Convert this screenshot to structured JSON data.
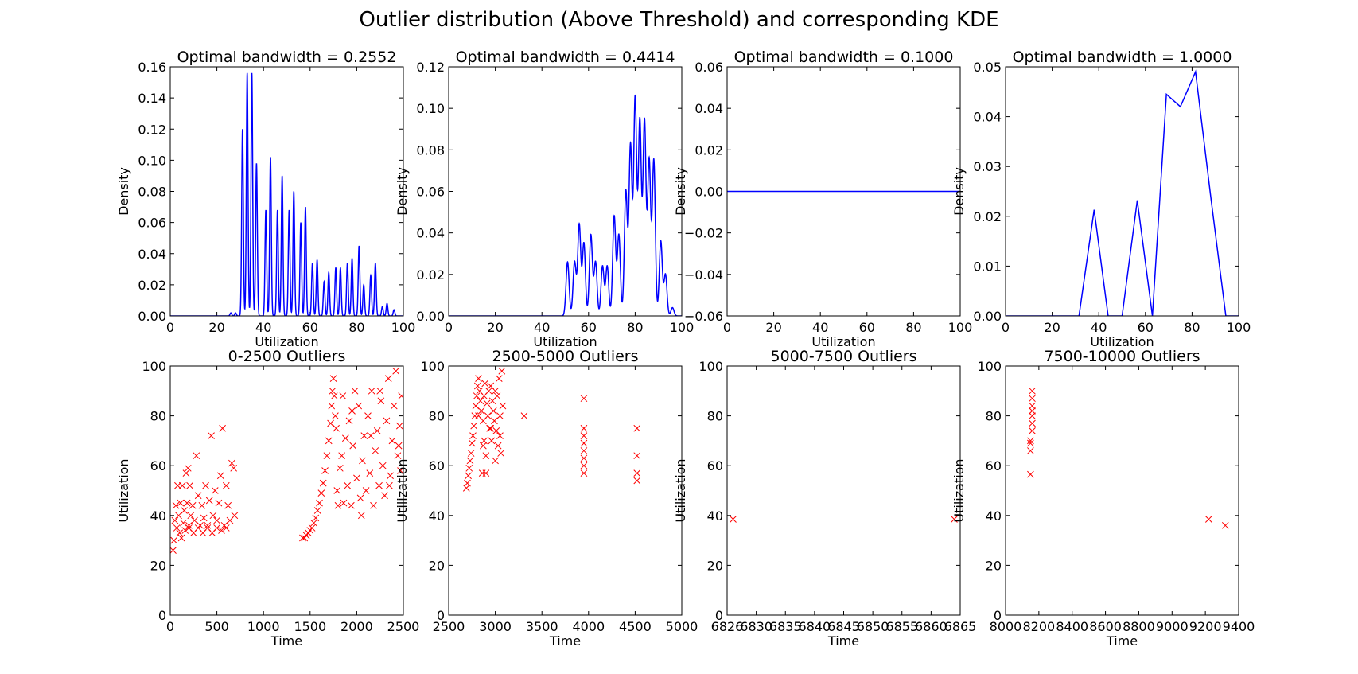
{
  "figure_title": "Outlier distribution (Above Threshold) and corresponding KDE",
  "colors": {
    "kde_line": "#0000ff",
    "scatter_marker": "#ff0000",
    "axes": "#000000"
  },
  "chart_data": [
    {
      "type": "line",
      "title": "Optimal bandwidth = 0.2552",
      "xlabel": "Utilization",
      "ylabel": "Density",
      "xlim": [
        0,
        100
      ],
      "ylim": [
        0,
        0.16
      ],
      "xticks": [
        "0",
        "20",
        "40",
        "60",
        "80",
        "100"
      ],
      "yticks": [
        "0.00",
        "0.02",
        "0.04",
        "0.06",
        "0.08",
        "0.10",
        "0.12",
        "0.14",
        "0.16"
      ],
      "peaks": [
        [
          26,
          0.002
        ],
        [
          28,
          0.002
        ],
        [
          31,
          0.12
        ],
        [
          33,
          0.156
        ],
        [
          35,
          0.156
        ],
        [
          37,
          0.098
        ],
        [
          41,
          0.068
        ],
        [
          43,
          0.102
        ],
        [
          46,
          0.068
        ],
        [
          48,
          0.09
        ],
        [
          51,
          0.068
        ],
        [
          53,
          0.08
        ],
        [
          56,
          0.06
        ],
        [
          58,
          0.07
        ],
        [
          61,
          0.034
        ],
        [
          63,
          0.036
        ],
        [
          66,
          0.022
        ],
        [
          68,
          0.028
        ],
        [
          71,
          0.031
        ],
        [
          73,
          0.031
        ],
        [
          76,
          0.034
        ],
        [
          78,
          0.037
        ],
        [
          81,
          0.045
        ],
        [
          83,
          0.02
        ],
        [
          86,
          0.026
        ],
        [
          88,
          0.034
        ],
        [
          91,
          0.006
        ],
        [
          93,
          0.008
        ],
        [
          96,
          0.004
        ]
      ],
      "peak_width": 0.35
    },
    {
      "type": "line",
      "title": "Optimal bandwidth = 0.4414",
      "xlabel": "Utilization",
      "ylabel": "Density",
      "xlim": [
        0,
        100
      ],
      "ylim": [
        0,
        0.12
      ],
      "xticks": [
        "0",
        "20",
        "40",
        "60",
        "80",
        "100"
      ],
      "yticks": [
        "0.00",
        "0.02",
        "0.04",
        "0.06",
        "0.08",
        "0.10",
        "0.12"
      ],
      "peaks": [
        [
          51,
          0.026
        ],
        [
          54,
          0.026
        ],
        [
          56,
          0.044
        ],
        [
          58,
          0.035
        ],
        [
          61,
          0.039
        ],
        [
          63,
          0.026
        ],
        [
          66,
          0.024
        ],
        [
          68,
          0.024
        ],
        [
          71,
          0.048
        ],
        [
          73,
          0.039
        ],
        [
          76,
          0.06
        ],
        [
          78,
          0.082
        ],
        [
          80,
          0.105
        ],
        [
          82,
          0.094
        ],
        [
          84,
          0.094
        ],
        [
          86,
          0.075
        ],
        [
          88,
          0.075
        ],
        [
          91,
          0.036
        ],
        [
          93,
          0.02
        ],
        [
          96,
          0.004
        ]
      ],
      "peak_width": 0.65
    },
    {
      "type": "line",
      "title": "Optimal bandwidth = 0.1000",
      "xlabel": "Utilization",
      "ylabel": "Density",
      "xlim": [
        0,
        100
      ],
      "ylim": [
        -0.06,
        0.06
      ],
      "xticks": [
        "0",
        "20",
        "40",
        "60",
        "80",
        "100"
      ],
      "yticks": [
        "−0.06",
        "−0.04",
        "−0.02",
        "0.00",
        "0.02",
        "0.04",
        "0.06"
      ],
      "points": [
        [
          0,
          0
        ],
        [
          100,
          0
        ]
      ]
    },
    {
      "type": "line",
      "title": "Optimal bandwidth = 1.0000",
      "xlabel": "Utilization",
      "ylabel": "Density",
      "xlim": [
        0,
        100
      ],
      "ylim": [
        0,
        0.05
      ],
      "xticks": [
        "0",
        "20",
        "40",
        "60",
        "80",
        "100"
      ],
      "yticks": [
        "0.00",
        "0.01",
        "0.02",
        "0.03",
        "0.04",
        "0.05"
      ],
      "points": [
        [
          0,
          0
        ],
        [
          31.5,
          0
        ],
        [
          38,
          0.0213
        ],
        [
          44,
          0
        ],
        [
          50,
          0
        ],
        [
          56.5,
          0.0232
        ],
        [
          63,
          0
        ],
        [
          69,
          0.0445
        ],
        [
          75,
          0.042
        ],
        [
          81.5,
          0.049
        ],
        [
          88,
          0.024
        ],
        [
          94.5,
          0
        ],
        [
          100,
          0
        ]
      ]
    },
    {
      "type": "scatter",
      "title": "0-2500 Outliers",
      "xlabel": "Time",
      "ylabel": "Utilization",
      "xlim": [
        0,
        2500
      ],
      "ylim": [
        0,
        100
      ],
      "xticks": [
        "0",
        "500",
        "1000",
        "1500",
        "2000",
        "2500"
      ],
      "yticks": [
        "0",
        "20",
        "40",
        "60",
        "80",
        "100"
      ],
      "points": [
        [
          30,
          26
        ],
        [
          40,
          30
        ],
        [
          50,
          38
        ],
        [
          60,
          44
        ],
        [
          70,
          35
        ],
        [
          80,
          52
        ],
        [
          90,
          40
        ],
        [
          100,
          33
        ],
        [
          110,
          45
        ],
        [
          120,
          31
        ],
        [
          130,
          52
        ],
        [
          140,
          37
        ],
        [
          150,
          42
        ],
        [
          160,
          34
        ],
        [
          170,
          57
        ],
        [
          180,
          45
        ],
        [
          190,
          59
        ],
        [
          200,
          36
        ],
        [
          210,
          52
        ],
        [
          220,
          40
        ],
        [
          240,
          44
        ],
        [
          260,
          38
        ],
        [
          280,
          64
        ],
        [
          300,
          48
        ],
        [
          320,
          36
        ],
        [
          340,
          44
        ],
        [
          360,
          39
        ],
        [
          380,
          52
        ],
        [
          400,
          36
        ],
        [
          420,
          46
        ],
        [
          440,
          72
        ],
        [
          460,
          40
        ],
        [
          480,
          50
        ],
        [
          500,
          38
        ],
        [
          520,
          45
        ],
        [
          540,
          56
        ],
        [
          560,
          75
        ],
        [
          580,
          36
        ],
        [
          600,
          52
        ],
        [
          620,
          44
        ],
        [
          640,
          38
        ],
        [
          660,
          61
        ],
        [
          680,
          59
        ],
        [
          690,
          40
        ],
        [
          200,
          35
        ],
        [
          300,
          35
        ],
        [
          400,
          35
        ],
        [
          500,
          35
        ],
        [
          600,
          35
        ],
        [
          250,
          33
        ],
        [
          350,
          33
        ],
        [
          450,
          33
        ],
        [
          550,
          34
        ],
        [
          1420,
          31
        ],
        [
          1440,
          31
        ],
        [
          1460,
          32
        ],
        [
          1480,
          33
        ],
        [
          1500,
          34
        ],
        [
          1520,
          35
        ],
        [
          1540,
          37
        ],
        [
          1560,
          39
        ],
        [
          1580,
          42
        ],
        [
          1600,
          45
        ],
        [
          1620,
          49
        ],
        [
          1640,
          53
        ],
        [
          1660,
          58
        ],
        [
          1680,
          64
        ],
        [
          1700,
          70
        ],
        [
          1720,
          77
        ],
        [
          1730,
          84
        ],
        [
          1740,
          90
        ],
        [
          1750,
          95
        ],
        [
          1760,
          88
        ],
        [
          1770,
          80
        ],
        [
          1780,
          75
        ],
        [
          1790,
          50
        ],
        [
          1800,
          44
        ],
        [
          1820,
          59
        ],
        [
          1840,
          64
        ],
        [
          1860,
          45
        ],
        [
          1880,
          71
        ],
        [
          1900,
          52
        ],
        [
          1920,
          78
        ],
        [
          1940,
          44
        ],
        [
          1960,
          68
        ],
        [
          1980,
          90
        ],
        [
          2000,
          55
        ],
        [
          2020,
          84
        ],
        [
          2040,
          47
        ],
        [
          2060,
          62
        ],
        [
          2080,
          72
        ],
        [
          2100,
          50
        ],
        [
          2120,
          80
        ],
        [
          2140,
          57
        ],
        [
          2160,
          90
        ],
        [
          2180,
          44
        ],
        [
          2200,
          66
        ],
        [
          2220,
          74
        ],
        [
          2240,
          52
        ],
        [
          2260,
          86
        ],
        [
          2280,
          60
        ],
        [
          2300,
          48
        ],
        [
          2320,
          78
        ],
        [
          2340,
          95
        ],
        [
          2360,
          56
        ],
        [
          2380,
          70
        ],
        [
          2400,
          84
        ],
        [
          2420,
          98
        ],
        [
          2440,
          64
        ],
        [
          2460,
          76
        ],
        [
          2470,
          58
        ],
        [
          2480,
          88
        ],
        [
          1850,
          88
        ],
        [
          1950,
          82
        ],
        [
          2050,
          40
        ],
        [
          2150,
          72
        ],
        [
          2250,
          90
        ],
        [
          2350,
          52
        ],
        [
          2450,
          68
        ]
      ]
    },
    {
      "type": "scatter",
      "title": "2500-5000 Outliers",
      "xlabel": "Time",
      "ylabel": "Utilization",
      "xlim": [
        2500,
        5000
      ],
      "ylim": [
        0,
        100
      ],
      "xticks": [
        "2500",
        "3000",
        "3500",
        "4000",
        "4500",
        "5000"
      ],
      "yticks": [
        "0",
        "20",
        "40",
        "60",
        "80",
        "100"
      ],
      "points": [
        [
          2690,
          51
        ],
        [
          2700,
          53
        ],
        [
          2710,
          56
        ],
        [
          2720,
          59
        ],
        [
          2730,
          62
        ],
        [
          2740,
          65
        ],
        [
          2750,
          69
        ],
        [
          2760,
          72
        ],
        [
          2770,
          76
        ],
        [
          2780,
          80
        ],
        [
          2790,
          84
        ],
        [
          2800,
          88
        ],
        [
          2810,
          92
        ],
        [
          2820,
          95
        ],
        [
          2830,
          90
        ],
        [
          2840,
          86
        ],
        [
          2850,
          82
        ],
        [
          2860,
          57
        ],
        [
          2870,
          78
        ],
        [
          2880,
          88
        ],
        [
          2890,
          93
        ],
        [
          2900,
          57
        ],
        [
          2910,
          85
        ],
        [
          2920,
          80
        ],
        [
          2930,
          90
        ],
        [
          2940,
          75
        ],
        [
          2950,
          92
        ],
        [
          2960,
          70
        ],
        [
          2970,
          86
        ],
        [
          2980,
          82
        ],
        [
          2990,
          78
        ],
        [
          3000,
          90
        ],
        [
          3010,
          74
        ],
        [
          3020,
          88
        ],
        [
          3030,
          68
        ],
        [
          3040,
          95
        ],
        [
          3050,
          80
        ],
        [
          3060,
          65
        ],
        [
          3070,
          98
        ],
        [
          3080,
          84
        ],
        [
          2880,
          70
        ],
        [
          2900,
          64
        ],
        [
          2950,
          75
        ],
        [
          3000,
          62
        ],
        [
          3050,
          72
        ],
        [
          2820,
          80
        ],
        [
          2870,
          68
        ],
        [
          3310,
          80
        ],
        [
          3950,
          87
        ],
        [
          3950,
          75
        ],
        [
          3950,
          72
        ],
        [
          3950,
          69
        ],
        [
          3950,
          66
        ],
        [
          3950,
          63
        ],
        [
          3950,
          60
        ],
        [
          3950,
          57
        ],
        [
          4520,
          75
        ],
        [
          4520,
          64
        ],
        [
          4520,
          57
        ],
        [
          4520,
          54
        ]
      ]
    },
    {
      "type": "scatter",
      "title": "5000-7500 Outliers",
      "xlabel": "Time",
      "ylabel": "Utilization",
      "xlim": [
        6826,
        6865
      ],
      "ylim": [
        0,
        100
      ],
      "xticks": [
        "6826",
        "6830",
        "6835",
        "6840",
        "6845",
        "6850",
        "6855",
        "6860",
        "6865"
      ],
      "yticks": [
        "0",
        "20",
        "40",
        "60",
        "80",
        "100"
      ],
      "points": [
        [
          6827,
          38.5
        ],
        [
          6864,
          38.5
        ]
      ]
    },
    {
      "type": "scatter",
      "title": "7500-10000 Outliers",
      "xlabel": "Time",
      "ylabel": "Utilization",
      "xlim": [
        8000,
        9400
      ],
      "ylim": [
        0,
        100
      ],
      "xticks": [
        "8000",
        "8200",
        "8400",
        "8600",
        "8800",
        "9000",
        "9200",
        "9400"
      ],
      "yticks": [
        "0",
        "20",
        "40",
        "60",
        "80",
        "100"
      ],
      "points": [
        [
          8150,
          56.5
        ],
        [
          8150,
          66
        ],
        [
          8150,
          69
        ],
        [
          8150,
          70
        ],
        [
          8160,
          74
        ],
        [
          8160,
          77
        ],
        [
          8160,
          80
        ],
        [
          8160,
          82
        ],
        [
          8160,
          84
        ],
        [
          8160,
          87
        ],
        [
          8160,
          90
        ],
        [
          9220,
          38.5
        ],
        [
          9320,
          36
        ]
      ]
    }
  ]
}
